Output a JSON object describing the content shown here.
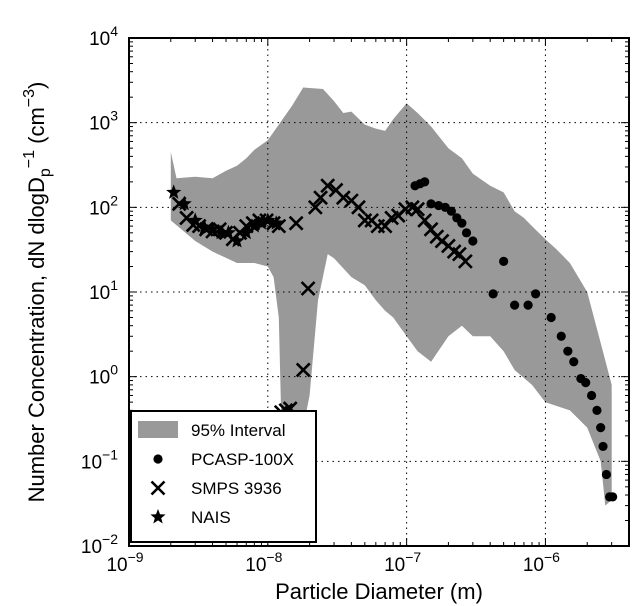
{
  "chart_data": {
    "type": "scatter",
    "xlabel": "Particle Diameter (m)",
    "ylabel": {
      "prefix": "Number Concentration, dN dlogD",
      "sub": "p",
      "sup1": "−1",
      "unit_open": " (cm",
      "sup2": "−3",
      "unit_close": ")"
    },
    "xscale": "log",
    "yscale": "log",
    "xlim": [
      1e-09,
      4e-06
    ],
    "ylim": [
      0.01,
      10000
    ],
    "x_ticks": [
      {
        "value": 1e-09,
        "base": "10",
        "exp": "−9"
      },
      {
        "value": 1e-08,
        "base": "10",
        "exp": "−8"
      },
      {
        "value": 1e-07,
        "base": "10",
        "exp": "−7"
      },
      {
        "value": 1e-06,
        "base": "10",
        "exp": "−6"
      }
    ],
    "y_ticks": [
      {
        "value": 0.01,
        "base": "10",
        "exp": "−2"
      },
      {
        "value": 0.1,
        "base": "10",
        "exp": "−1"
      },
      {
        "value": 1,
        "base": "10",
        "exp": "0"
      },
      {
        "value": 10,
        "base": "10",
        "exp": "1"
      },
      {
        "value": 100,
        "base": "10",
        "exp": "2"
      },
      {
        "value": 1000,
        "base": "10",
        "exp": "3"
      },
      {
        "value": 10000,
        "base": "10",
        "exp": "4"
      }
    ],
    "grid": true,
    "legend_position": "lower-left",
    "interval": {
      "name": "95% Interval",
      "color": "#999999",
      "upper": [
        [
          2e-09,
          450
        ],
        [
          2.2e-09,
          220
        ],
        [
          3e-09,
          230
        ],
        [
          4e-09,
          220
        ],
        [
          5e-09,
          270
        ],
        [
          6e-09,
          310
        ],
        [
          7e-09,
          380
        ],
        [
          8e-09,
          480
        ],
        [
          1e-08,
          620
        ],
        [
          1.2e-08,
          950
        ],
        [
          1.5e-08,
          1600
        ],
        [
          1.8e-08,
          2600
        ],
        [
          2.5e-08,
          2500
        ],
        [
          3e-08,
          1800
        ],
        [
          3.5e-08,
          1300
        ],
        [
          4e-08,
          1350
        ],
        [
          5e-08,
          950
        ],
        [
          6e-08,
          850
        ],
        [
          7e-08,
          800
        ],
        [
          8e-08,
          1100
        ],
        [
          1e-07,
          1700
        ],
        [
          1.2e-07,
          1300
        ],
        [
          1.5e-07,
          900
        ],
        [
          2e-07,
          500
        ],
        [
          2.5e-07,
          380
        ],
        [
          3e-07,
          250
        ],
        [
          4e-07,
          180
        ],
        [
          5e-07,
          150
        ],
        [
          6e-07,
          90
        ],
        [
          7e-07,
          75
        ],
        [
          8e-07,
          60
        ],
        [
          1e-06,
          42
        ],
        [
          1.2e-06,
          32
        ],
        [
          1.5e-06,
          22
        ],
        [
          2e-06,
          10
        ],
        [
          2.5e-06,
          2.5
        ],
        [
          3e-06,
          0.8
        ]
      ],
      "lower": [
        [
          2e-09,
          70
        ],
        [
          3e-09,
          40
        ],
        [
          4e-09,
          30
        ],
        [
          6e-09,
          22
        ],
        [
          8e-09,
          22
        ],
        [
          1e-08,
          20
        ],
        [
          1.1e-08,
          15
        ],
        [
          1.2e-08,
          5
        ],
        [
          1.25e-08,
          0.3
        ],
        [
          1.5e-08,
          0.2
        ],
        [
          1.8e-08,
          0.25
        ],
        [
          2e-08,
          0.6
        ],
        [
          2.3e-08,
          8
        ],
        [
          2.7e-08,
          28
        ],
        [
          3e-08,
          25
        ],
        [
          4e-08,
          15
        ],
        [
          5e-08,
          12
        ],
        [
          6e-08,
          8
        ],
        [
          7e-08,
          6
        ],
        [
          8e-08,
          5
        ],
        [
          1e-07,
          3
        ],
        [
          1.2e-07,
          2
        ],
        [
          1.5e-07,
          1.5
        ],
        [
          2e-07,
          3
        ],
        [
          2.5e-07,
          4
        ],
        [
          3e-07,
          3
        ],
        [
          4e-07,
          3
        ],
        [
          5e-07,
          2
        ],
        [
          6e-07,
          1.2
        ],
        [
          8e-07,
          0.8
        ],
        [
          1e-06,
          0.5
        ],
        [
          1.5e-06,
          0.4
        ],
        [
          2e-06,
          0.25
        ],
        [
          2.5e-06,
          0.1
        ],
        [
          2.7e-06,
          0.03
        ],
        [
          3e-06,
          0.035
        ]
      ]
    },
    "series": [
      {
        "name": "PCASP-100X",
        "marker": "circle",
        "color": "#000000",
        "points": [
          [
            1.15e-07,
            180
          ],
          [
            1.25e-07,
            190
          ],
          [
            1.35e-07,
            200
          ],
          [
            1.5e-07,
            110
          ],
          [
            1.7e-07,
            105
          ],
          [
            1.9e-07,
            100
          ],
          [
            2.1e-07,
            90
          ],
          [
            2.3e-07,
            75
          ],
          [
            2.5e-07,
            65
          ],
          [
            2.7e-07,
            50
          ],
          [
            3e-07,
            40
          ],
          [
            4.2e-07,
            9.5
          ],
          [
            5e-07,
            23
          ],
          [
            6e-07,
            7
          ],
          [
            7.5e-07,
            7
          ],
          [
            8.5e-07,
            9.5
          ],
          [
            1.1e-06,
            5
          ],
          [
            1.3e-06,
            3
          ],
          [
            1.45e-06,
            2
          ],
          [
            1.6e-06,
            1.5
          ],
          [
            1.8e-06,
            0.95
          ],
          [
            1.95e-06,
            0.85
          ],
          [
            2.15e-06,
            0.6
          ],
          [
            2.35e-06,
            0.4
          ],
          [
            2.5e-06,
            0.25
          ],
          [
            2.6e-06,
            0.15
          ],
          [
            2.75e-06,
            0.07
          ],
          [
            2.9e-06,
            0.038
          ],
          [
            3.05e-06,
            0.038
          ]
        ]
      },
      {
        "name": "SMPS 3936",
        "marker": "x",
        "color": "#000000",
        "points": [
          [
            2.3e-09,
            110
          ],
          [
            2.6e-09,
            75
          ],
          [
            2.9e-09,
            62
          ],
          [
            3.2e-09,
            60
          ],
          [
            3.6e-09,
            55
          ],
          [
            4e-09,
            52
          ],
          [
            4.5e-09,
            55
          ],
          [
            5e-09,
            50
          ],
          [
            5.6e-09,
            42
          ],
          [
            6.3e-09,
            50
          ],
          [
            7e-09,
            60
          ],
          [
            7.8e-09,
            65
          ],
          [
            8.7e-09,
            70
          ],
          [
            9.8e-09,
            70
          ],
          [
            1.1e-08,
            65
          ],
          [
            1.2e-08,
            60
          ],
          [
            1.25e-08,
            0.38
          ],
          [
            1.35e-08,
            0.4
          ],
          [
            1.45e-08,
            0.42
          ],
          [
            1.6e-08,
            65
          ],
          [
            1.8e-08,
            1.2
          ],
          [
            1.95e-08,
            11
          ],
          [
            2.2e-08,
            100
          ],
          [
            2.4e-08,
            130
          ],
          [
            2.7e-08,
            180
          ],
          [
            3.1e-08,
            160
          ],
          [
            3.5e-08,
            130
          ],
          [
            4e-08,
            120
          ],
          [
            4.5e-08,
            100
          ],
          [
            5e-08,
            70
          ],
          [
            5.6e-08,
            70
          ],
          [
            6.2e-08,
            60
          ],
          [
            7e-08,
            60
          ],
          [
            7.8e-08,
            75
          ],
          [
            8.7e-08,
            80
          ],
          [
            9.8e-08,
            95
          ],
          [
            1.1e-07,
            100
          ],
          [
            1.2e-07,
            95
          ],
          [
            1.35e-07,
            70
          ],
          [
            1.5e-07,
            55
          ],
          [
            1.65e-07,
            45
          ],
          [
            1.8e-07,
            40
          ],
          [
            2e-07,
            35
          ],
          [
            2.2e-07,
            30
          ],
          [
            2.4e-07,
            28
          ],
          [
            2.65e-07,
            23
          ]
        ]
      },
      {
        "name": "NAIS",
        "marker": "star",
        "color": "#000000",
        "points": [
          [
            2.1e-09,
            150
          ],
          [
            2.5e-09,
            110
          ],
          [
            3e-09,
            70
          ],
          [
            3.5e-09,
            58
          ],
          [
            4e-09,
            55
          ],
          [
            4.6e-09,
            50
          ],
          [
            5.2e-09,
            50
          ],
          [
            6e-09,
            40
          ],
          [
            7e-09,
            50
          ],
          [
            8e-09,
            60
          ],
          [
            9e-09,
            65
          ],
          [
            1e-08,
            70
          ],
          [
            1.15e-08,
            65
          ]
        ]
      }
    ],
    "legend": [
      {
        "label": "95% Interval",
        "marker": "patch"
      },
      {
        "label": "PCASP-100X",
        "marker": "circle"
      },
      {
        "label": "SMPS 3936",
        "marker": "x"
      },
      {
        "label": "NAIS",
        "marker": "star"
      }
    ]
  }
}
